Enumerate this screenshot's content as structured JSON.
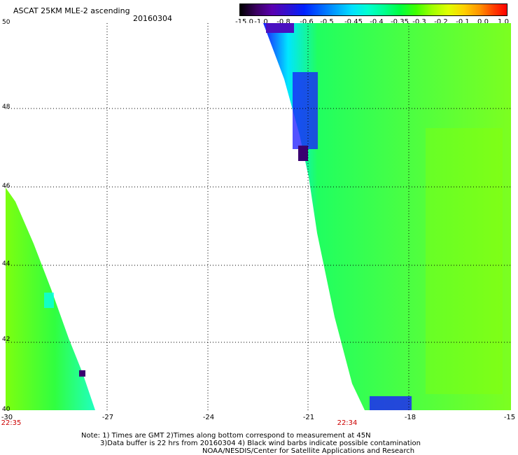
{
  "header": {
    "title": "ASCAT 25KM MLE-2 ascending",
    "date": "20160304"
  },
  "colorbar": {
    "labels": [
      "-15.0",
      "-1.0",
      "-0.8",
      "-0.6",
      "-0.5",
      "-0.45",
      "-0.4",
      "-0.35",
      "-0.3",
      "-0.2",
      "-0.1",
      "0.0",
      "1.0"
    ]
  },
  "axes": {
    "y_ticks": [
      "50",
      "48",
      "46",
      "44",
      "42",
      "40"
    ],
    "x_ticks": [
      "-30",
      "-27",
      "-24",
      "-21",
      "-18",
      "-15"
    ],
    "times": [
      "22:35",
      "22:34"
    ]
  },
  "notes": {
    "line1": "Note: 1) Times are GMT 2)Times along bottom correspond to measurement at 45N",
    "line2": "3)Data buffer is 22 hrs from 20160304 4) Black wind barbs indicate possible contamination",
    "line3": "NOAA/NESDIS/Center for Satellite Applications and Research"
  },
  "colors": {
    "dark_purple": "#3a0070",
    "blue": "#1a1aff",
    "cyan": "#00ffff",
    "teal": "#00ffb0",
    "green": "#2bff2b",
    "light_green": "#8cff00",
    "time_red": "#cc0000"
  }
}
